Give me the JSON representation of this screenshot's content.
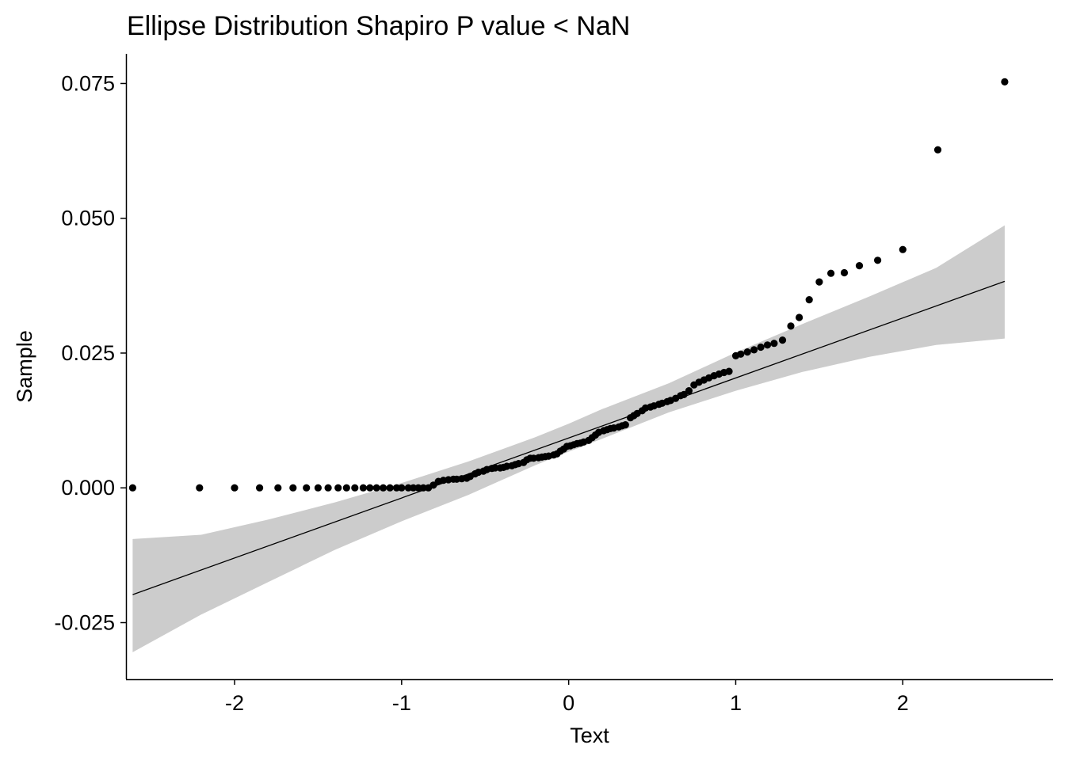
{
  "chart_data": {
    "type": "scatter",
    "title": "Ellipse Distribution Shapiro P value <  NaN",
    "xlabel": "Text",
    "ylabel": "Sample",
    "xlim": [
      -2.65,
      2.9
    ],
    "ylim": [
      -0.0355,
      0.0805
    ],
    "x_ticks": [
      -2,
      -1,
      0,
      1,
      2
    ],
    "x_tick_labels": [
      "-2",
      "-1",
      "0",
      "1",
      "2"
    ],
    "y_ticks": [
      -0.025,
      0.0,
      0.025,
      0.05,
      0.075
    ],
    "y_tick_labels": [
      "-0.025",
      "0.000",
      "0.025",
      "0.050",
      "0.075"
    ],
    "grid": false,
    "colors": {
      "points": "#000000",
      "line": "#000000",
      "band": "#cccccc",
      "axis": "#000000"
    },
    "reference_line": {
      "x": [
        -2.61,
        2.61
      ],
      "y": [
        -0.0198,
        0.0383
      ]
    },
    "confidence_band": {
      "x": [
        -2.61,
        -2.2,
        -1.8,
        -1.4,
        -1.0,
        -0.6,
        -0.2,
        0.0,
        0.2,
        0.6,
        1.0,
        1.4,
        1.8,
        2.2,
        2.61
      ],
      "lower": [
        -0.0305,
        -0.0235,
        -0.0175,
        -0.0115,
        -0.0062,
        -0.0013,
        0.0042,
        0.0067,
        0.0091,
        0.014,
        0.018,
        0.0215,
        0.0243,
        0.0265,
        0.0277
      ],
      "upper": [
        -0.0095,
        -0.0087,
        -0.0059,
        -0.0027,
        0.0009,
        0.0049,
        0.0094,
        0.0119,
        0.0146,
        0.0194,
        0.0251,
        0.0304,
        0.0355,
        0.0408,
        0.0487
      ]
    },
    "points": {
      "x": [
        -2.61,
        -2.21,
        -2.0,
        -1.85,
        -1.74,
        -1.65,
        -1.57,
        -1.5,
        -1.44,
        -1.38,
        -1.33,
        -1.28,
        -1.23,
        -1.19,
        -1.15,
        -1.11,
        -1.07,
        -1.03,
        -1.0,
        -0.96,
        -0.93,
        -0.9,
        -0.87,
        -0.84,
        -0.81,
        -0.78,
        -0.75,
        -0.72,
        -0.69,
        -0.67,
        -0.64,
        -0.61,
        -0.59,
        -0.56,
        -0.54,
        -0.51,
        -0.49,
        -0.46,
        -0.44,
        -0.41,
        -0.39,
        -0.37,
        -0.34,
        -0.32,
        -0.3,
        -0.27,
        -0.25,
        -0.23,
        -0.21,
        -0.18,
        -0.16,
        -0.14,
        -0.12,
        -0.09,
        -0.07,
        -0.05,
        -0.03,
        -0.01,
        0.01,
        0.03,
        0.05,
        0.07,
        0.09,
        0.12,
        0.14,
        0.16,
        0.18,
        0.21,
        0.23,
        0.25,
        0.27,
        0.3,
        0.32,
        0.34,
        0.37,
        0.39,
        0.41,
        0.44,
        0.46,
        0.49,
        0.51,
        0.54,
        0.56,
        0.59,
        0.61,
        0.64,
        0.67,
        0.69,
        0.72,
        0.75,
        0.78,
        0.81,
        0.84,
        0.87,
        0.9,
        0.93,
        0.96,
        1.0,
        1.03,
        1.07,
        1.11,
        1.15,
        1.19,
        1.23,
        1.28,
        1.33,
        1.38,
        1.44,
        1.5,
        1.57,
        1.65,
        1.74,
        1.85,
        2.0,
        2.21,
        2.61
      ],
      "y": [
        0.0,
        0.0,
        0.0,
        0.0,
        0.0,
        0.0,
        0.0,
        0.0,
        0.0,
        0.0,
        0.0,
        0.0,
        0.0,
        0.0,
        0.0,
        0.0,
        0.0,
        0.0,
        0.0,
        0.0,
        0.0,
        0.0,
        0.0,
        0.0,
        0.0005,
        0.0012,
        0.0014,
        0.0015,
        0.0016,
        0.0016,
        0.0017,
        0.0018,
        0.0021,
        0.0026,
        0.0029,
        0.0031,
        0.0034,
        0.0036,
        0.0037,
        0.0037,
        0.0038,
        0.004,
        0.0041,
        0.0043,
        0.0045,
        0.0047,
        0.0052,
        0.0055,
        0.0055,
        0.0056,
        0.0057,
        0.0058,
        0.0059,
        0.0061,
        0.0063,
        0.0068,
        0.0072,
        0.0077,
        0.0078,
        0.008,
        0.0082,
        0.0083,
        0.0085,
        0.0088,
        0.0093,
        0.0098,
        0.0103,
        0.0106,
        0.0108,
        0.011,
        0.0111,
        0.0113,
        0.0115,
        0.0117,
        0.013,
        0.0134,
        0.0138,
        0.0143,
        0.0148,
        0.015,
        0.0152,
        0.0155,
        0.0157,
        0.016,
        0.0162,
        0.0166,
        0.0171,
        0.0173,
        0.018,
        0.0191,
        0.0196,
        0.02,
        0.0204,
        0.0208,
        0.0211,
        0.0214,
        0.0216,
        0.0245,
        0.0248,
        0.0252,
        0.0256,
        0.0261,
        0.0265,
        0.0268,
        0.0274,
        0.03,
        0.0316,
        0.0349,
        0.0382,
        0.0398,
        0.0399,
        0.0412,
        0.0422,
        0.0442,
        0.0627,
        0.0753
      ]
    }
  }
}
